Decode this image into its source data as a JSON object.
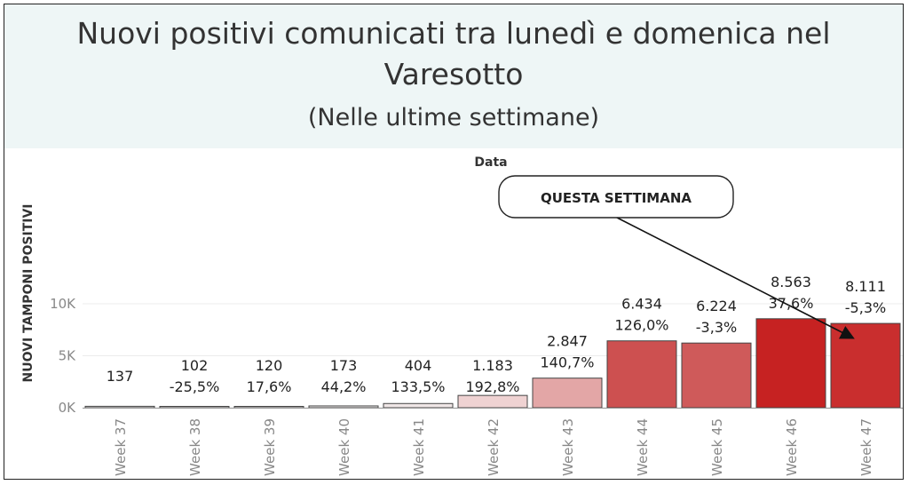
{
  "header": {
    "title_line1": "Nuovi positivi comunicati tra lunedì e domenica nel",
    "title_line2": "Varesotto",
    "subtitle": "(Nelle ultime settimane)"
  },
  "callout": {
    "label": "QUESTA SETTIMANA"
  },
  "chart_data": {
    "type": "bar",
    "title": "Nuovi positivi comunicati tra lunedì e domenica nel Varesotto",
    "subtitle": "(Nelle ultime settimane)",
    "xlabel": "Data",
    "ylabel": "NUOVI TAMPONI POSITIVI",
    "ylim": [
      0,
      11000
    ],
    "yticks": [
      0,
      5000,
      10000
    ],
    "ytick_labels": [
      "0K",
      "5K",
      "10K"
    ],
    "categories": [
      "Week 37",
      "Week 38",
      "Week 39",
      "Week 40",
      "Week 41",
      "Week 42",
      "Week 43",
      "Week 44",
      "Week 45",
      "Week 46",
      "Week 47"
    ],
    "values": [
      137,
      102,
      120,
      173,
      404,
      1183,
      2847,
      6434,
      6224,
      8563,
      8111
    ],
    "value_labels": [
      "137",
      "102",
      "120",
      "173",
      "404",
      "1.183",
      "2.847",
      "6.434",
      "6.224",
      "8.563",
      "8.111"
    ],
    "change_labels": [
      "",
      "-25,5%",
      "17,6%",
      "44,2%",
      "133,5%",
      "192,8%",
      "140,7%",
      "126,0%",
      "-3,3%",
      "37,6%",
      "-5,3%"
    ],
    "colors": [
      "#f5f2f2",
      "#f5f2f2",
      "#f5f2f2",
      "#f3efef",
      "#efe6e6",
      "#efd2d2",
      "#e3a6a6",
      "#cd5050",
      "#cf5a5a",
      "#c62222",
      "#c92e2e"
    ],
    "grid": true,
    "legend": "none"
  }
}
